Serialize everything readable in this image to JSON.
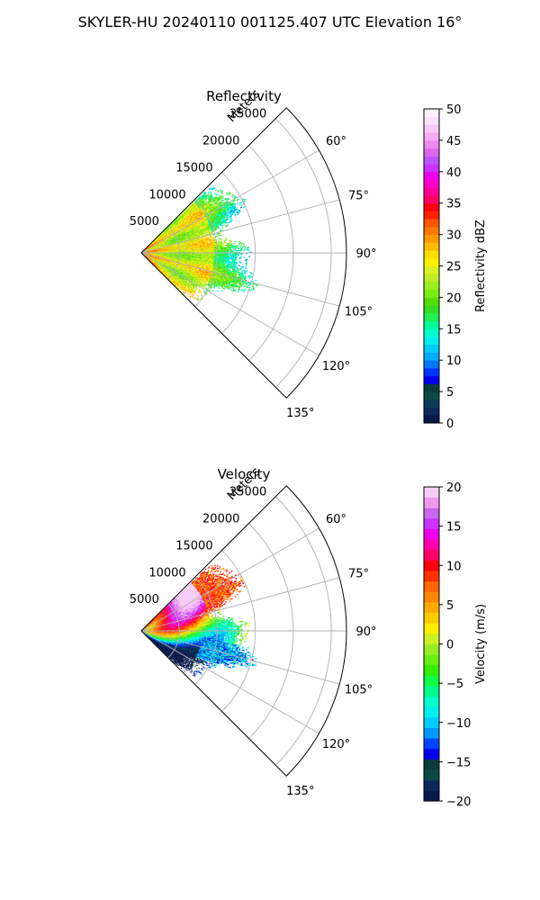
{
  "page": {
    "title": "SKYLER-HU  20240110  001125.407 UTC Elevation 16°"
  },
  "chart_data": [
    {
      "type": "heatmap",
      "title": "Reflectivity",
      "radial_label": "Meters",
      "radial_ticks": [
        5000,
        10000,
        15000,
        20000,
        25000
      ],
      "radial_max": 27000,
      "angle_ticks": [
        60,
        75,
        90,
        105,
        120,
        135
      ],
      "angle_tick_labels": [
        "60°",
        "75°",
        "90°",
        "105°",
        "120°",
        "135°"
      ],
      "angle_range": [
        45,
        135
      ],
      "grid": true,
      "colorbar": {
        "label": "Reflectivity dBZ",
        "min": 0,
        "max": 50,
        "ticks": [
          0,
          5,
          10,
          15,
          20,
          25,
          30,
          35,
          40,
          45,
          50
        ],
        "tick_labels": [
          "0",
          "5",
          "10",
          "15",
          "20",
          "25",
          "30",
          "35",
          "40",
          "45",
          "50"
        ],
        "colors": [
          "#081a4a",
          "#0c2a5e",
          "#0e3b5a",
          "#0c4a46",
          "#0a3a3a",
          "#0000ee",
          "#0033ff",
          "#0077ff",
          "#00aaff",
          "#00ccff",
          "#00eeee",
          "#00ffcc",
          "#00ff99",
          "#22ee55",
          "#33dd22",
          "#55dd00",
          "#77ee11",
          "#99ee22",
          "#bbee22",
          "#ddf022",
          "#ffee00",
          "#ffdd00",
          "#ffbb00",
          "#ff9900",
          "#ff7700",
          "#ff5500",
          "#ff2200",
          "#ff0011",
          "#ff0066",
          "#ff0099",
          "#ff00cc",
          "#ee00ee",
          "#cc33ff",
          "#bb55ff",
          "#dd66ee",
          "#ee88ee",
          "#f5aaf5",
          "#f8c8f8",
          "#fbe0fb",
          "#fdf0fd"
        ]
      },
      "field": {
        "sector_start_deg": 45,
        "sector_end_deg": 135,
        "max_range_m": 15000,
        "typical_value": 24,
        "description_values": "mostly 20–30 dBZ, edges 10–20 dBZ"
      }
    },
    {
      "type": "heatmap",
      "title": "Velocity",
      "radial_label": "Meters",
      "radial_ticks": [
        5000,
        10000,
        15000,
        20000,
        25000
      ],
      "radial_max": 27000,
      "angle_ticks": [
        60,
        75,
        90,
        105,
        120,
        135
      ],
      "angle_tick_labels": [
        "60°",
        "75°",
        "90°",
        "105°",
        "120°",
        "135°"
      ],
      "angle_range": [
        45,
        135
      ],
      "grid": true,
      "colorbar": {
        "label": "Velocity (m/s)",
        "min": -20,
        "max": 20,
        "ticks": [
          -20,
          -15,
          -10,
          -5,
          0,
          5,
          10,
          15,
          20
        ],
        "tick_labels": [
          "−20",
          "−15",
          "−10",
          "−5",
          "0",
          "5",
          "10",
          "15",
          "20"
        ],
        "colors": [
          "#081a4a",
          "#0c2a5e",
          "#0c4a46",
          "#0a3a3a",
          "#0000ee",
          "#0044ff",
          "#0099ff",
          "#00ccff",
          "#00eeee",
          "#00ffcc",
          "#00ff88",
          "#11ff44",
          "#33ee00",
          "#66ee11",
          "#99ee22",
          "#ccf022",
          "#ffee00",
          "#ffcc00",
          "#ffaa00",
          "#ff8800",
          "#ff6600",
          "#ff3300",
          "#ff0011",
          "#ff0066",
          "#ff00aa",
          "#ee00ee",
          "#cc33ff",
          "#cc66ee",
          "#ee99ee",
          "#f8ccf8"
        ]
      },
      "field": {
        "sector_start_deg": 45,
        "sector_end_deg": 135,
        "max_range_m": 15000,
        "description_values": "banded −10 to +12 m/s, positive north side, negative south side"
      }
    }
  ]
}
